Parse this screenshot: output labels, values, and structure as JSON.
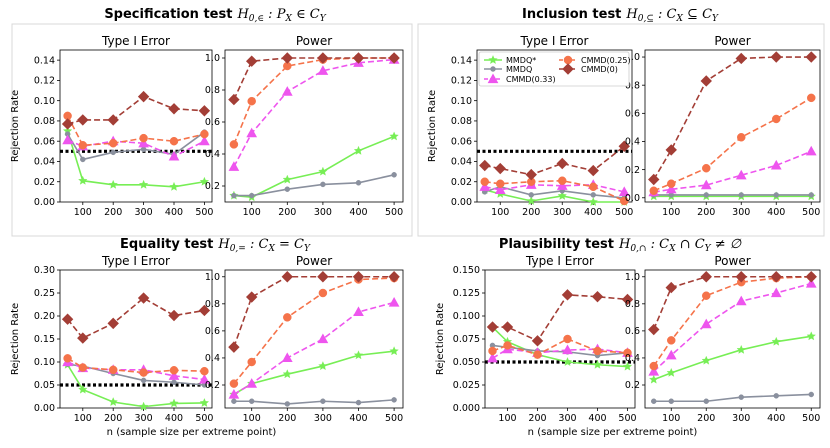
{
  "colors": {
    "MMDQ*": "#77ee55",
    "MMDQ": "#8a909e",
    "CMMD(0.33)": "#ee55ee",
    "CMMD(0.25)": "#f5734a",
    "CMMD(0)": "#a33e36",
    "reference": "#000000"
  },
  "legend": {
    "entries": [
      "MMDQ*",
      "MMDQ",
      "CMMD(0.33)",
      "CMMD(0.25)",
      "CMMD(0)"
    ]
  },
  "shared_xlabel": "n (sample size per extreme point)",
  "shared_ylabel": "Rejection Rate",
  "quadrants": [
    {
      "title": {
        "bold": "Specification test",
        "math": "H",
        "sub": "0,∈",
        "rest": " : Pₓ ∈ Cᵧ"
      },
      "title_parts": [
        "Specification test",
        "H",
        "0,∈",
        " : ",
        "P",
        "X",
        " ∈ ",
        "C",
        "Y"
      ]
    },
    {
      "title_parts": [
        "Inclusion test",
        "H",
        "0,⊆",
        " : ",
        "C",
        "X",
        " ⊆ ",
        "C",
        "Y"
      ]
    },
    {
      "title_parts": [
        "Equality test",
        "H",
        "0,=",
        " : ",
        "C",
        "X",
        " = ",
        "C",
        "Y"
      ]
    },
    {
      "title_parts": [
        "Plausibility test",
        "H",
        "0,∩",
        " : ",
        "C",
        "X",
        " ∩ ",
        "C",
        "Y",
        " ≠ ∅"
      ]
    }
  ],
  "chart_data": [
    {
      "quadrant": 0,
      "panel": "type1",
      "type": "line",
      "title": "Type I Error",
      "ylabel": "Rejection Rate",
      "xlabel": "",
      "x": [
        50,
        100,
        200,
        300,
        400,
        500
      ],
      "xticks": [
        100,
        200,
        300,
        400,
        500
      ],
      "ylim": [
        0,
        0.15
      ],
      "yticks": [
        0.0,
        0.02,
        0.04,
        0.06,
        0.08,
        0.1,
        0.12,
        0.14
      ],
      "ytick_labels": [
        "0.00",
        "0.02",
        "0.04",
        "0.06",
        "0.08",
        "0.10",
        "0.12",
        "0.14"
      ],
      "reference": 0.05,
      "series": [
        {
          "name": "MMDQ*",
          "values": [
            0.07,
            0.021,
            0.017,
            0.017,
            0.015,
            0.02
          ]
        },
        {
          "name": "MMDQ",
          "values": [
            0.067,
            0.042,
            0.049,
            0.052,
            0.047,
            0.069
          ]
        },
        {
          "name": "CMMD(0.33)",
          "values": [
            0.061,
            0.055,
            0.06,
            0.058,
            0.045,
            0.06
          ]
        },
        {
          "name": "CMMD(0.25)",
          "values": [
            0.085,
            0.056,
            0.058,
            0.063,
            0.06,
            0.067
          ]
        },
        {
          "name": "CMMD(0)",
          "values": [
            0.077,
            0.081,
            0.081,
            0.104,
            0.092,
            0.09
          ]
        }
      ]
    },
    {
      "quadrant": 0,
      "panel": "power",
      "type": "line",
      "title": "Power",
      "ylabel": "",
      "xlabel": "",
      "x": [
        50,
        100,
        200,
        300,
        400,
        500
      ],
      "xticks": [
        100,
        200,
        300,
        400,
        500
      ],
      "ylim": [
        0.1,
        1.05
      ],
      "yticks": [
        0.2,
        0.4,
        0.6,
        0.8,
        1.0
      ],
      "ytick_labels": [
        "0.2",
        "0.4",
        "0.6",
        "0.8",
        "1.0"
      ],
      "series": [
        {
          "name": "MMDQ*",
          "values": [
            0.14,
            0.13,
            0.24,
            0.29,
            0.42,
            0.51
          ]
        },
        {
          "name": "MMDQ",
          "values": [
            0.14,
            0.14,
            0.18,
            0.21,
            0.22,
            0.27
          ]
        },
        {
          "name": "CMMD(0.33)",
          "values": [
            0.32,
            0.53,
            0.79,
            0.92,
            0.97,
            0.99
          ]
        },
        {
          "name": "CMMD(0.25)",
          "values": [
            0.46,
            0.73,
            0.95,
            0.99,
            1.0,
            1.0
          ]
        },
        {
          "name": "CMMD(0)",
          "values": [
            0.74,
            0.98,
            1.0,
            1.0,
            1.0,
            1.0
          ]
        }
      ]
    },
    {
      "quadrant": 1,
      "panel": "type1",
      "type": "line",
      "title": "Type I Error",
      "ylabel": "Rejection Rate",
      "xlabel": "",
      "x": [
        50,
        100,
        200,
        300,
        400,
        500
      ],
      "xticks": [
        100,
        200,
        300,
        400,
        500
      ],
      "ylim": [
        0,
        0.15
      ],
      "yticks": [
        0.0,
        0.02,
        0.04,
        0.06,
        0.08,
        0.1,
        0.12,
        0.14
      ],
      "ytick_labels": [
        "0.00",
        "0.02",
        "0.04",
        "0.06",
        "0.08",
        "0.10",
        "0.12",
        "0.14"
      ],
      "reference": 0.05,
      "series": [
        {
          "name": "MMDQ*",
          "values": [
            0.012,
            0.008,
            0.001,
            0.006,
            0.0,
            0.0
          ]
        },
        {
          "name": "MMDQ",
          "values": [
            0.01,
            0.015,
            0.007,
            0.011,
            0.007,
            0.004
          ]
        },
        {
          "name": "CMMD(0.33)",
          "values": [
            0.015,
            0.012,
            0.017,
            0.016,
            0.017,
            0.01
          ]
        },
        {
          "name": "CMMD(0.25)",
          "values": [
            0.02,
            0.018,
            0.02,
            0.021,
            0.015,
            0.001
          ]
        },
        {
          "name": "CMMD(0)",
          "values": [
            0.036,
            0.033,
            0.027,
            0.038,
            0.031,
            0.055
          ]
        }
      ]
    },
    {
      "quadrant": 1,
      "panel": "power",
      "type": "line",
      "title": "Power",
      "ylabel": "",
      "xlabel": "",
      "x": [
        50,
        100,
        200,
        300,
        400,
        500
      ],
      "xticks": [
        100,
        200,
        300,
        400,
        500
      ],
      "ylim": [
        -0.03,
        1.05
      ],
      "yticks": [
        0.0,
        0.2,
        0.4,
        0.6,
        0.8,
        1.0
      ],
      "ytick_labels": [
        "0.0",
        "0.2",
        "0.4",
        "0.6",
        "0.8",
        "1.0"
      ],
      "series": [
        {
          "name": "MMDQ*",
          "values": [
            0.01,
            0.01,
            0.01,
            0.01,
            0.01,
            0.01
          ]
        },
        {
          "name": "MMDQ",
          "values": [
            0.02,
            0.02,
            0.02,
            0.02,
            0.02,
            0.02
          ]
        },
        {
          "name": "CMMD(0.33)",
          "values": [
            0.04,
            0.06,
            0.09,
            0.16,
            0.23,
            0.33
          ]
        },
        {
          "name": "CMMD(0.25)",
          "values": [
            0.05,
            0.1,
            0.21,
            0.43,
            0.56,
            0.71
          ]
        },
        {
          "name": "CMMD(0)",
          "values": [
            0.13,
            0.34,
            0.83,
            0.99,
            1.0,
            1.0
          ]
        }
      ]
    },
    {
      "quadrant": 2,
      "panel": "type1",
      "type": "line",
      "title": "Type I Error",
      "ylabel": "Rejection Rate",
      "xlabel": "n (sample size per extreme point)",
      "x": [
        50,
        100,
        200,
        300,
        400,
        500
      ],
      "xticks": [
        100,
        200,
        300,
        400,
        500
      ],
      "ylim": [
        0,
        0.3
      ],
      "yticks": [
        0.0,
        0.05,
        0.1,
        0.15,
        0.2,
        0.25,
        0.3
      ],
      "ytick_labels": [
        "0.00",
        "0.05",
        "0.10",
        "0.15",
        "0.20",
        "0.25",
        "0.30"
      ],
      "reference": 0.05,
      "series": [
        {
          "name": "MMDQ*",
          "values": [
            0.094,
            0.04,
            0.013,
            0.003,
            0.01,
            0.011
          ]
        },
        {
          "name": "MMDQ",
          "values": [
            0.095,
            0.091,
            0.075,
            0.06,
            0.056,
            0.05
          ]
        },
        {
          "name": "CMMD(0.33)",
          "values": [
            0.1,
            0.087,
            0.083,
            0.083,
            0.07,
            0.062
          ]
        },
        {
          "name": "CMMD(0.25)",
          "values": [
            0.108,
            0.088,
            0.083,
            0.077,
            0.082,
            0.08
          ]
        },
        {
          "name": "CMMD(0)",
          "values": [
            0.193,
            0.152,
            0.184,
            0.239,
            0.201,
            0.212
          ]
        }
      ]
    },
    {
      "quadrant": 2,
      "panel": "power",
      "type": "line",
      "title": "Power",
      "ylabel": "",
      "xlabel": "n (sample size per extreme point)",
      "x": [
        50,
        100,
        200,
        300,
        400,
        500
      ],
      "xticks": [
        100,
        200,
        300,
        400,
        500
      ],
      "ylim": [
        0.03,
        1.05
      ],
      "yticks": [
        0.2,
        0.4,
        0.6,
        0.8,
        1.0
      ],
      "ytick_labels": [
        "0.2",
        "0.4",
        "0.6",
        "0.8",
        "1.0"
      ],
      "series": [
        {
          "name": "MMDQ*",
          "values": [
            0.13,
            0.21,
            0.28,
            0.34,
            0.42,
            0.45
          ]
        },
        {
          "name": "MMDQ",
          "values": [
            0.08,
            0.08,
            0.06,
            0.08,
            0.07,
            0.09
          ]
        },
        {
          "name": "CMMD(0.33)",
          "values": [
            0.13,
            0.21,
            0.4,
            0.54,
            0.74,
            0.81
          ]
        },
        {
          "name": "CMMD(0.25)",
          "values": [
            0.21,
            0.37,
            0.7,
            0.88,
            0.98,
            0.99
          ]
        },
        {
          "name": "CMMD(0)",
          "values": [
            0.48,
            0.85,
            1.0,
            1.0,
            1.0,
            1.0
          ]
        }
      ]
    },
    {
      "quadrant": 3,
      "panel": "type1",
      "type": "line",
      "title": "Type I Error",
      "ylabel": "Rejection Rate",
      "xlabel": "n (sample size per extreme point)",
      "x": [
        50,
        100,
        200,
        300,
        400,
        500
      ],
      "xticks": [
        100,
        200,
        300,
        400,
        500
      ],
      "ylim": [
        0,
        0.15
      ],
      "yticks": [
        0.0,
        0.025,
        0.05,
        0.075,
        0.1,
        0.125,
        0.15
      ],
      "ytick_labels": [
        "0.000",
        "0.025",
        "0.050",
        "0.075",
        "0.100",
        "0.125",
        "0.150"
      ],
      "reference": 0.05,
      "series": [
        {
          "name": "MMDQ*",
          "values": [
            0.088,
            0.072,
            0.058,
            0.05,
            0.047,
            0.045
          ]
        },
        {
          "name": "MMDQ",
          "values": [
            0.068,
            0.066,
            0.062,
            0.061,
            0.057,
            0.06
          ]
        },
        {
          "name": "CMMD(0.33)",
          "values": [
            0.054,
            0.064,
            0.06,
            0.063,
            0.064,
            0.06
          ]
        },
        {
          "name": "CMMD(0.25)",
          "values": [
            0.062,
            0.068,
            0.058,
            0.075,
            0.062,
            0.06
          ]
        },
        {
          "name": "CMMD(0)",
          "values": [
            0.088,
            0.088,
            0.073,
            0.123,
            0.121,
            0.118
          ]
        }
      ]
    },
    {
      "quadrant": 3,
      "panel": "power",
      "type": "line",
      "title": "Power",
      "ylabel": "",
      "xlabel": "n (sample size per extreme point)",
      "x": [
        50,
        100,
        200,
        300,
        400,
        500
      ],
      "xticks": [
        100,
        200,
        300,
        400,
        500
      ],
      "ylim": [
        0.03,
        1.05
      ],
      "yticks": [
        0.2,
        0.4,
        0.6,
        0.8,
        1.0
      ],
      "ytick_labels": [
        "0.2",
        "0.4",
        "0.6",
        "0.8",
        "1.0"
      ],
      "series": [
        {
          "name": "MMDQ*",
          "values": [
            0.24,
            0.29,
            0.38,
            0.46,
            0.52,
            0.56
          ]
        },
        {
          "name": "MMDQ",
          "values": [
            0.08,
            0.08,
            0.08,
            0.11,
            0.12,
            0.13
          ]
        },
        {
          "name": "CMMD(0.33)",
          "values": [
            0.3,
            0.42,
            0.65,
            0.82,
            0.88,
            0.95
          ]
        },
        {
          "name": "CMMD(0.25)",
          "values": [
            0.34,
            0.53,
            0.86,
            0.96,
            0.99,
            1.0
          ]
        },
        {
          "name": "CMMD(0)",
          "values": [
            0.61,
            0.92,
            1.0,
            1.0,
            1.0,
            1.0
          ]
        }
      ]
    }
  ]
}
